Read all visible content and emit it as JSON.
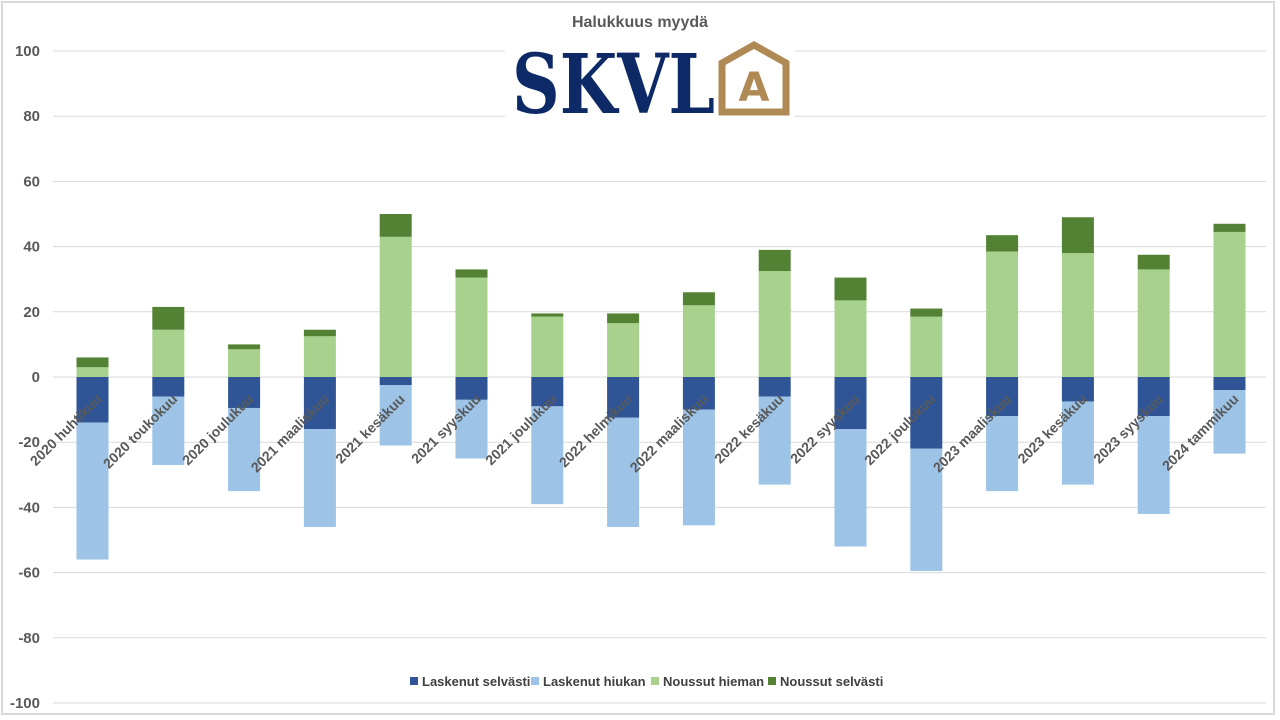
{
  "chart_data": {
    "type": "bar",
    "stacked": true,
    "title": "Halukkuus myydä",
    "xlabel": "",
    "ylabel": "",
    "ylim": [
      -100,
      100
    ],
    "yticks": [
      100,
      80,
      60,
      40,
      20,
      0,
      -20,
      -40,
      -60,
      -80,
      -100
    ],
    "grid": true,
    "legend_position": "bottom",
    "categories": [
      "2020 huhtikuu",
      "2020 toukokuu",
      "2020 joulukuu",
      "2021 maaliskuu",
      "2021 kesäkuu",
      "2021 syyskuu",
      "2021 joulukuu",
      "2022 helmikuu",
      "2022 maaliskuu",
      "2022 kesäkuu",
      "2022 syyskuu",
      "2022 joulukuu",
      "2023 maaliskuu",
      "2023 kesäkuu",
      "2023 syyskuu",
      "2024 tammikuu"
    ],
    "series": [
      {
        "name": "Laskenut selvästi",
        "color": "#2f5597",
        "values": [
          -14,
          -6,
          -9.5,
          -16,
          -2.5,
          -7,
          -9,
          -12.5,
          -10,
          -6,
          -16,
          -22,
          -12,
          -7.5,
          -12,
          -4
        ]
      },
      {
        "name": "Laskenut hiukan",
        "color": "#9dc3e6",
        "values": [
          -42,
          -21,
          -25.5,
          -30,
          -18.5,
          -18,
          -30,
          -33.5,
          -35.5,
          -27,
          -36,
          -37.5,
          -23,
          -25.5,
          -30,
          -19.5
        ]
      },
      {
        "name": "Noussut hieman",
        "color": "#a9d18e",
        "values": [
          3,
          14.5,
          8.5,
          12.5,
          43,
          30.5,
          18.5,
          16.5,
          22,
          32.5,
          23.5,
          18.5,
          38.5,
          38,
          33,
          44.5
        ]
      },
      {
        "name": "Noussut selvästi",
        "color": "#548235",
        "values": [
          3,
          7,
          1.5,
          2,
          7,
          2.5,
          1,
          3,
          4,
          6.5,
          7,
          2.5,
          5,
          11,
          4.5,
          2.5
        ]
      }
    ]
  },
  "logo": {
    "text": "SKVL",
    "mark_letter": "A"
  }
}
